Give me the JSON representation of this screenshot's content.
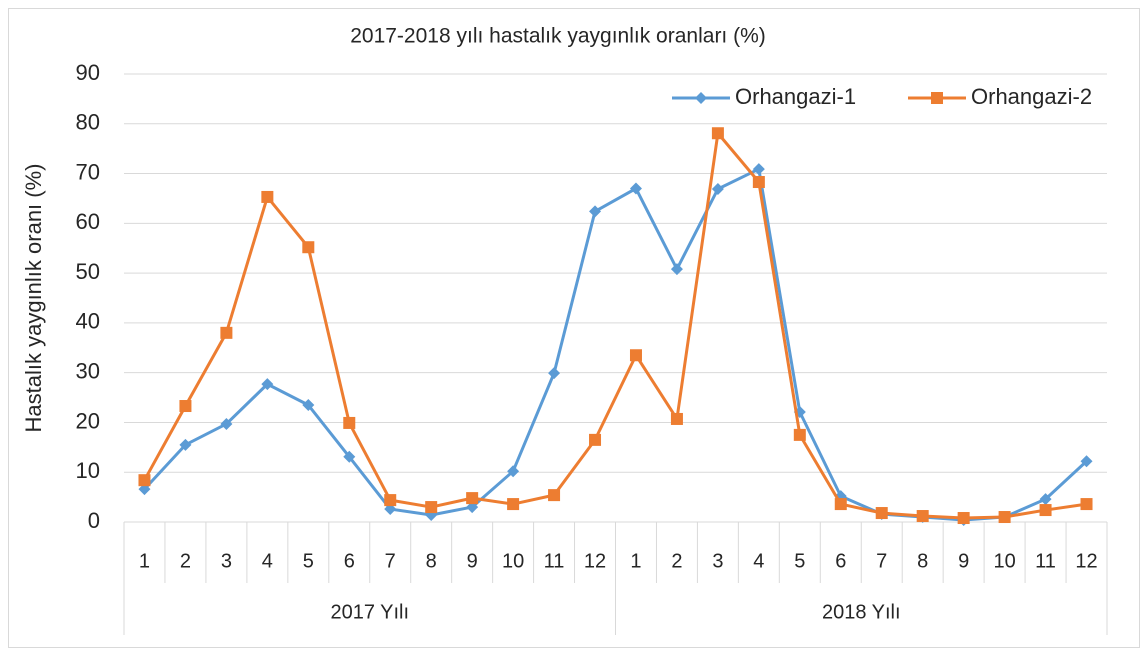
{
  "chart_data": {
    "type": "line",
    "title": "2017-2018 yılı hastalık yaygınlık oranları (%)",
    "y_label": "Hastalık yaygınlık oranı  (%)",
    "categories": [
      "1",
      "2",
      "3",
      "4",
      "5",
      "6",
      "7",
      "8",
      "9",
      "10",
      "11",
      "12",
      "1",
      "2",
      "3",
      "4",
      "5",
      "6",
      "7",
      "8",
      "9",
      "10",
      "11",
      "12"
    ],
    "category_groups": [
      "2017 Yılı",
      "2018 Yılı"
    ],
    "series": [
      {
        "name": "Orhangazi-1",
        "color": "#5b9bd5",
        "marker": "diamond",
        "values": [
          6.6,
          15.5,
          19.7,
          27.7,
          23.5,
          13.1,
          2.6,
          1.4,
          3.0,
          10.2,
          29.9,
          62.4,
          67,
          50.8,
          66.9,
          70.9,
          22.1,
          5.2,
          1.6,
          1.0,
          0.4,
          1.0,
          4.6,
          12.2
        ]
      },
      {
        "name": "Orhangazi-2",
        "color": "#ed7d31",
        "marker": "square",
        "values": [
          8.4,
          23.3,
          38,
          65.3,
          55.2,
          19.9,
          4.4,
          3.0,
          4.8,
          3.6,
          5.4,
          16.5,
          33.5,
          20.7,
          78.1,
          68.3,
          17.5,
          3.6,
          1.8,
          1.2,
          0.8,
          1.0,
          2.4,
          3.6
        ]
      }
    ],
    "ylim": [
      0,
      90
    ],
    "yticks": [
      0,
      10,
      20,
      30,
      40,
      50,
      60,
      70,
      80,
      90
    ],
    "grid": true,
    "legend": "top-right"
  }
}
